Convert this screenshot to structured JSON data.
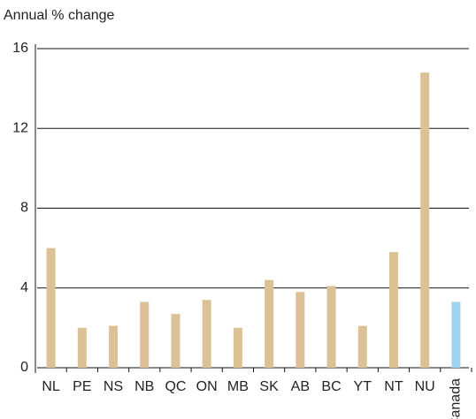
{
  "chart_data": {
    "type": "bar",
    "y_label": "Annual % change",
    "categories": [
      "NL",
      "PE",
      "NS",
      "NB",
      "QC",
      "ON",
      "MB",
      "SK",
      "AB",
      "BC",
      "YT",
      "NT",
      "NU",
      "Canada"
    ],
    "values": [
      6.0,
      2.0,
      2.1,
      3.3,
      2.7,
      3.4,
      2.0,
      4.4,
      3.8,
      4.1,
      2.1,
      5.8,
      14.8,
      3.3
    ],
    "colors": [
      "#dcc197",
      "#dcc197",
      "#dcc197",
      "#dcc197",
      "#dcc197",
      "#dcc197",
      "#dcc197",
      "#dcc197",
      "#dcc197",
      "#dcc197",
      "#dcc197",
      "#dcc197",
      "#dcc197",
      "#9fd4ef"
    ],
    "ylim": [
      0,
      16
    ],
    "yticks": [
      0,
      4,
      8,
      12,
      16
    ],
    "grid": true
  }
}
